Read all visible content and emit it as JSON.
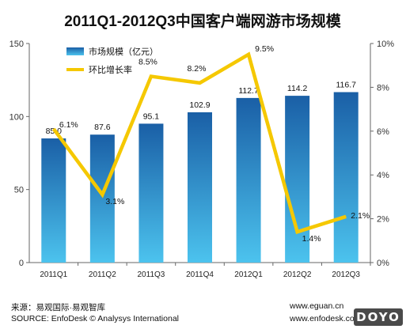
{
  "chart_data": {
    "type": "bar",
    "title": "2011Q1-2012Q3中国客户端网游市场规模",
    "categories": [
      "2011Q1",
      "2011Q2",
      "2011Q3",
      "2011Q4",
      "2012Q1",
      "2012Q2",
      "2012Q3"
    ],
    "series": [
      {
        "name": "市场规模（亿元）",
        "type": "bar",
        "axis": "left",
        "values": [
          85.0,
          87.6,
          95.1,
          102.9,
          112.7,
          114.2,
          116.7
        ],
        "labels": [
          "85.0",
          "87.6",
          "95.1",
          "102.9",
          "112.7",
          "114.2",
          "116.7"
        ],
        "color_top": "#1a5fa6",
        "color_bottom": "#4cc3ee"
      },
      {
        "name": "环比增长率",
        "type": "line",
        "axis": "right",
        "values": [
          6.1,
          3.1,
          8.5,
          8.2,
          9.5,
          1.4,
          2.1
        ],
        "labels": [
          "6.1%",
          "3.1%",
          "8.5%",
          "8.2%",
          "9.5%",
          "1.4%",
          "2.1%"
        ],
        "color": "#f5c800"
      }
    ],
    "y_left": {
      "ylim": [
        0,
        150
      ],
      "ticks": [
        "0",
        "50",
        "100",
        "150"
      ]
    },
    "y_right": {
      "ylim": [
        0,
        10
      ],
      "ticks": [
        "0%",
        "2%",
        "4%",
        "6%",
        "8%",
        "10%"
      ]
    },
    "legend_position": "top-left",
    "grid": false
  },
  "footer": {
    "source_cn": "来源：易观国际·易观智库",
    "source_en": "SOURCE: EnfoDesk © Analysys International",
    "url1": "www.eguan.cn",
    "url2": "www.enfodesk.com"
  },
  "watermark": "DOYO"
}
